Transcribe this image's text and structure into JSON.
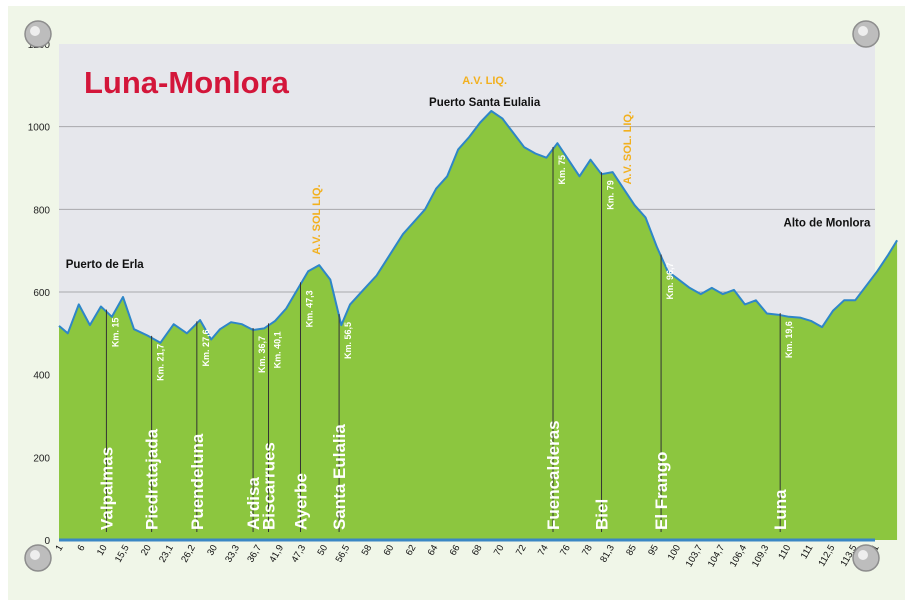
{
  "chart_data": {
    "type": "area",
    "title": "Luna-Monlora",
    "ylim": [
      0,
      1200
    ],
    "y_ticks": [
      "1200",
      "1000",
      "800",
      "600",
      "400",
      "200",
      "0"
    ],
    "x_tick_labels": [
      "1",
      "6",
      "10",
      "15,5",
      "20",
      "23,1",
      "26,2",
      "30",
      "33,3",
      "36,7",
      "41,9",
      "47,3",
      "50",
      "56,5",
      "58",
      "60",
      "62",
      "64",
      "66",
      "68",
      "70",
      "72",
      "74",
      "76",
      "78",
      "81,3",
      "85",
      "95",
      "100",
      "103,7",
      "104,7",
      "106,4",
      "109,3",
      "110",
      "111",
      "112,5",
      "113,5",
      "11"
    ],
    "grid": true,
    "fill_color": "#8cc63f",
    "line_color": "#2e86c8",
    "elevation": [
      {
        "x": 0,
        "y": 518
      },
      {
        "x": 0.4,
        "y": 500
      },
      {
        "x": 0.9,
        "y": 570
      },
      {
        "x": 1.4,
        "y": 520
      },
      {
        "x": 1.9,
        "y": 565
      },
      {
        "x": 2.4,
        "y": 540
      },
      {
        "x": 2.9,
        "y": 588
      },
      {
        "x": 3.4,
        "y": 510
      },
      {
        "x": 4.0,
        "y": 495
      },
      {
        "x": 4.6,
        "y": 477
      },
      {
        "x": 5.2,
        "y": 522
      },
      {
        "x": 5.8,
        "y": 500
      },
      {
        "x": 6.4,
        "y": 532
      },
      {
        "x": 6.9,
        "y": 485
      },
      {
        "x": 7.3,
        "y": 510
      },
      {
        "x": 7.8,
        "y": 527
      },
      {
        "x": 8.3,
        "y": 522
      },
      {
        "x": 8.8,
        "y": 508
      },
      {
        "x": 9.3,
        "y": 512
      },
      {
        "x": 9.8,
        "y": 530
      },
      {
        "x": 10.3,
        "y": 560
      },
      {
        "x": 10.8,
        "y": 605
      },
      {
        "x": 11.3,
        "y": 650
      },
      {
        "x": 11.8,
        "y": 665
      },
      {
        "x": 12.3,
        "y": 630
      },
      {
        "x": 12.8,
        "y": 520
      },
      {
        "x": 13.2,
        "y": 570
      },
      {
        "x": 13.8,
        "y": 605
      },
      {
        "x": 14.4,
        "y": 640
      },
      {
        "x": 15.0,
        "y": 690
      },
      {
        "x": 15.6,
        "y": 740
      },
      {
        "x": 16.1,
        "y": 770
      },
      {
        "x": 16.6,
        "y": 800
      },
      {
        "x": 17.1,
        "y": 850
      },
      {
        "x": 17.6,
        "y": 880
      },
      {
        "x": 18.1,
        "y": 945
      },
      {
        "x": 18.6,
        "y": 975
      },
      {
        "x": 19.1,
        "y": 1010
      },
      {
        "x": 19.6,
        "y": 1038
      },
      {
        "x": 20.1,
        "y": 1020
      },
      {
        "x": 20.6,
        "y": 985
      },
      {
        "x": 21.1,
        "y": 950
      },
      {
        "x": 21.6,
        "y": 935
      },
      {
        "x": 22.1,
        "y": 925
      },
      {
        "x": 22.6,
        "y": 960
      },
      {
        "x": 23.1,
        "y": 920
      },
      {
        "x": 23.6,
        "y": 880
      },
      {
        "x": 24.1,
        "y": 920
      },
      {
        "x": 24.6,
        "y": 885
      },
      {
        "x": 25.1,
        "y": 890
      },
      {
        "x": 25.6,
        "y": 850
      },
      {
        "x": 26.1,
        "y": 810
      },
      {
        "x": 26.6,
        "y": 780
      },
      {
        "x": 27.1,
        "y": 710
      },
      {
        "x": 27.6,
        "y": 650
      },
      {
        "x": 28.1,
        "y": 630
      },
      {
        "x": 28.6,
        "y": 610
      },
      {
        "x": 29.1,
        "y": 595
      },
      {
        "x": 29.6,
        "y": 610
      },
      {
        "x": 30.1,
        "y": 595
      },
      {
        "x": 30.6,
        "y": 605
      },
      {
        "x": 31.1,
        "y": 570
      },
      {
        "x": 31.6,
        "y": 580
      },
      {
        "x": 32.1,
        "y": 548
      },
      {
        "x": 32.6,
        "y": 545
      },
      {
        "x": 33.1,
        "y": 540
      },
      {
        "x": 33.6,
        "y": 538
      },
      {
        "x": 34.1,
        "y": 530
      },
      {
        "x": 34.6,
        "y": 515
      },
      {
        "x": 35.1,
        "y": 555
      },
      {
        "x": 35.6,
        "y": 580
      },
      {
        "x": 36.1,
        "y": 580
      },
      {
        "x": 36.6,
        "y": 615
      },
      {
        "x": 37.1,
        "y": 650
      },
      {
        "x": 37.6,
        "y": 690
      },
      {
        "x": 38.0,
        "y": 725
      }
    ],
    "peaks": [
      {
        "label": "Puerto de Erla",
        "x": 2.3,
        "y": 610
      },
      {
        "label": "Puerto Santa Eulalia",
        "x": 19.3,
        "y": 1038
      },
      {
        "label": "Alto de Monlora",
        "x": 36.6,
        "y": 725
      }
    ],
    "supply_points": [
      {
        "label": "A.V. SOL LIQ.",
        "x": 11.6
      },
      {
        "label": "A.V. LIQ.",
        "x": 19.3
      },
      {
        "label": "A.V. SOL. LIQ.",
        "x": 25.7
      }
    ],
    "towns": [
      {
        "name": "Valpalmas",
        "km": "Km. 15",
        "x": 2.15
      },
      {
        "name": "Piedratajada",
        "km": "Km. 21,7",
        "x": 4.2
      },
      {
        "name": "Puendeluna",
        "km": "Km. 27,6",
        "x": 6.25
      },
      {
        "name": "Ardisa",
        "km": "Km. 36,7",
        "x": 8.8
      },
      {
        "name": "Biscarrues",
        "km": "Km. 40,1",
        "x": 9.5
      },
      {
        "name": "Ayerbe",
        "km": "Km. 47,3",
        "x": 10.95
      },
      {
        "name": "Santa Eulalia",
        "km": "Km. 56,5",
        "x": 12.7
      },
      {
        "name": "Fuencalderas",
        "km": "Km. 75",
        "x": 22.4
      },
      {
        "name": "Biel",
        "km": "Km. 79",
        "x": 24.6
      },
      {
        "name": "El Frango",
        "km": "Km. 96,7",
        "x": 27.3
      },
      {
        "name": "Luna",
        "km": "Km. 19,6",
        "x": 32.7
      }
    ]
  }
}
